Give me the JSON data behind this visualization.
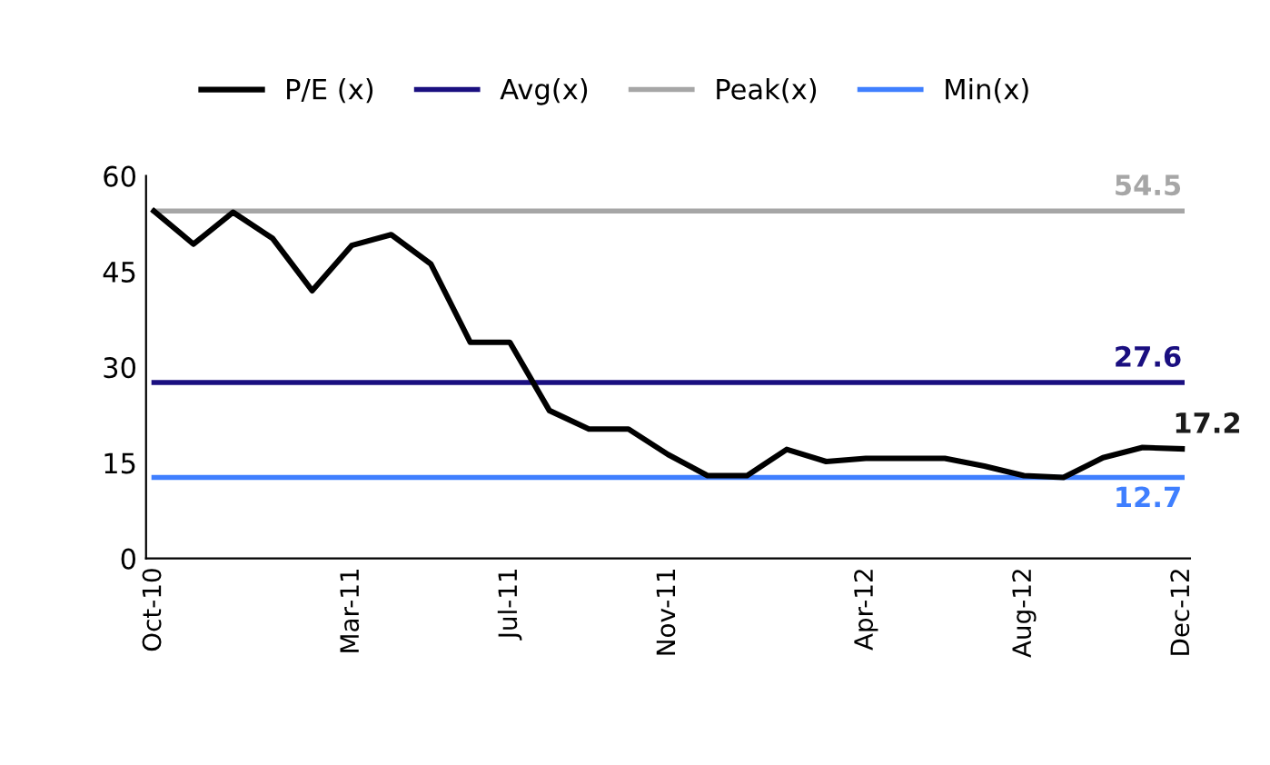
{
  "chart_data": {
    "type": "line",
    "categories": [
      "Oct-10",
      null,
      null,
      null,
      null,
      "Mar-11",
      null,
      null,
      null,
      "Jul-11",
      null,
      null,
      null,
      "Nov-11",
      null,
      null,
      null,
      null,
      "Apr-12",
      null,
      null,
      null,
      "Aug-12",
      null,
      null,
      null,
      "Dec-12"
    ],
    "series": [
      {
        "name": "P/E (x)",
        "color": "#000000",
        "values": [
          54.5,
          49.3,
          54.3,
          50.2,
          42.0,
          49.1,
          50.8,
          46.2,
          33.9,
          33.9,
          23.2,
          20.3,
          20.3,
          16.3,
          13.0,
          13.0,
          17.1,
          15.2,
          15.7,
          15.7,
          15.7,
          14.5,
          13.0,
          12.7,
          15.8,
          17.4,
          17.2
        ],
        "value_labels": [
          null,
          null,
          null,
          null,
          null,
          null,
          null,
          null,
          null,
          null,
          null,
          null,
          null,
          null,
          null,
          null,
          null,
          null,
          null,
          null,
          null,
          null,
          null,
          null,
          null,
          null,
          "17.2"
        ]
      },
      {
        "name": "Avg(x)",
        "color": "#1a0f80",
        "values": [
          27.6,
          27.6,
          27.6,
          27.6,
          27.6,
          27.6,
          27.6,
          27.6,
          27.6,
          27.6,
          27.6,
          27.6,
          27.6,
          27.6,
          27.6,
          27.6,
          27.6,
          27.6,
          27.6,
          27.6,
          27.6,
          27.6,
          27.6,
          27.6,
          27.6,
          27.6,
          27.6
        ],
        "value_labels": [
          null,
          null,
          null,
          null,
          null,
          null,
          null,
          null,
          null,
          null,
          null,
          null,
          null,
          null,
          null,
          null,
          null,
          null,
          null,
          null,
          null,
          null,
          null,
          null,
          null,
          null,
          "27.6"
        ]
      },
      {
        "name": "Peak(x)",
        "color": "#a6a6a6",
        "values": [
          54.5,
          54.5,
          54.5,
          54.5,
          54.5,
          54.5,
          54.5,
          54.5,
          54.5,
          54.5,
          54.5,
          54.5,
          54.5,
          54.5,
          54.5,
          54.5,
          54.5,
          54.5,
          54.5,
          54.5,
          54.5,
          54.5,
          54.5,
          54.5,
          54.5,
          54.5,
          54.5
        ],
        "value_labels": [
          null,
          null,
          null,
          null,
          null,
          null,
          null,
          null,
          null,
          null,
          null,
          null,
          null,
          null,
          null,
          null,
          null,
          null,
          null,
          null,
          null,
          null,
          null,
          null,
          null,
          null,
          "54.5"
        ]
      },
      {
        "name": "Min(x)",
        "color": "#3f7fff",
        "values": [
          12.7,
          12.7,
          12.7,
          12.7,
          12.7,
          12.7,
          12.7,
          12.7,
          12.7,
          12.7,
          12.7,
          12.7,
          12.7,
          12.7,
          12.7,
          12.7,
          12.7,
          12.7,
          12.7,
          12.7,
          12.7,
          12.7,
          12.7,
          12.7,
          12.7,
          12.7,
          12.7
        ],
        "value_labels": [
          null,
          null,
          null,
          null,
          null,
          null,
          null,
          null,
          null,
          null,
          null,
          null,
          null,
          null,
          null,
          null,
          null,
          null,
          null,
          null,
          null,
          null,
          null,
          null,
          null,
          null,
          "12.7"
        ]
      }
    ],
    "ylim": [
      0,
      60
    ],
    "yticks": [
      0,
      15,
      30,
      45,
      60
    ],
    "grid": false,
    "legend": "top",
    "marker": "none",
    "line_style": "solid"
  }
}
